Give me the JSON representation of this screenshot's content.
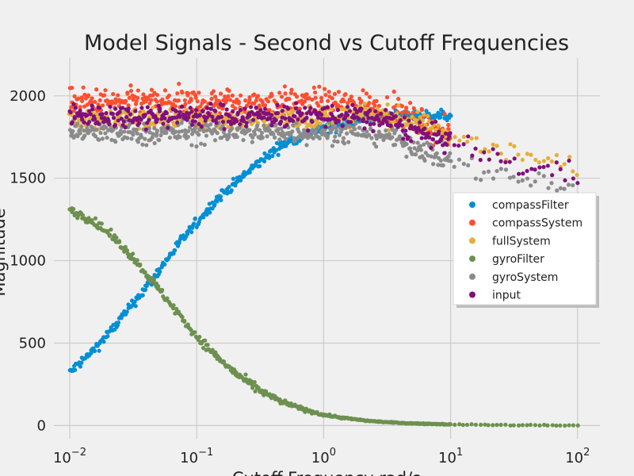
{
  "chart_data": {
    "type": "scatter",
    "title": "Model Signals - Second vs Cutoff Frequencies",
    "xlabel": "Cutoff Frequency rad/s",
    "ylabel": "Magnitude",
    "xscale": "log",
    "xlim": [
      0.0075,
      150
    ],
    "ylim": [
      -80,
      2230
    ],
    "x_ticks": [
      0.01,
      0.1,
      1,
      10,
      100
    ],
    "y_ticks": [
      0,
      500,
      1000,
      1500,
      2000
    ],
    "grid": true,
    "legend_position": "right",
    "series": [
      {
        "name": "compassFilter",
        "color": "#008fd5",
        "x": [
          0.01,
          0.0146,
          0.0215,
          0.0316,
          0.0464,
          0.0681,
          0.1,
          0.147,
          0.215,
          0.316,
          0.464,
          0.681,
          1.0,
          1.47,
          2.15,
          3.16,
          4.64,
          6.81,
          10
        ],
        "y": [
          320,
          440,
          580,
          740,
          900,
          1080,
          1230,
          1380,
          1490,
          1600,
          1700,
          1760,
          1800,
          1830,
          1860,
          1880,
          1880,
          1880,
          1880
        ]
      },
      {
        "name": "compassSystem",
        "color": "#fc4f30",
        "x": [
          0.01,
          0.0316,
          0.1,
          0.316,
          1.0,
          2.15,
          3.16,
          4.64,
          6.81,
          10
        ],
        "y": [
          1960,
          1960,
          1960,
          1960,
          1960,
          1950,
          1920,
          1870,
          1810,
          1760
        ]
      },
      {
        "name": "fullSystem",
        "color": "#e5ae38",
        "x": [
          0.01,
          0.0316,
          0.1,
          0.316,
          1.0,
          2.15,
          3.16,
          4.64,
          6.81,
          10,
          14.7,
          21.5,
          31.6,
          46.4,
          68.1,
          100
        ],
        "y": [
          1860,
          1860,
          1860,
          1860,
          1870,
          1890,
          1880,
          1850,
          1810,
          1760,
          1720,
          1680,
          1650,
          1620,
          1590,
          1560
        ]
      },
      {
        "name": "gyroFilter",
        "color": "#6d904f",
        "x": [
          0.01,
          0.0146,
          0.0215,
          0.0316,
          0.0464,
          0.0681,
          0.1,
          0.147,
          0.215,
          0.316,
          0.464,
          0.681,
          1.0,
          1.47,
          2.15,
          3.16,
          4.64,
          6.81,
          10,
          21.5,
          46.4,
          100
        ],
        "y": [
          1310,
          1250,
          1150,
          1020,
          860,
          700,
          540,
          410,
          300,
          210,
          145,
          100,
          65,
          45,
          30,
          20,
          14,
          10,
          7,
          3,
          2,
          1
        ]
      },
      {
        "name": "gyroSystem",
        "color": "#8b8b8b",
        "x": [
          0.01,
          0.0316,
          0.1,
          0.316,
          1.0,
          2.15,
          3.16,
          4.64,
          6.81,
          10,
          14.7,
          21.5,
          31.6,
          46.4,
          68.1,
          100
        ],
        "y": [
          1780,
          1770,
          1780,
          1780,
          1780,
          1780,
          1760,
          1710,
          1660,
          1610,
          1570,
          1530,
          1500,
          1470,
          1450,
          1430
        ]
      },
      {
        "name": "input",
        "color": "#810f7c",
        "x": [
          0.01,
          0.0316,
          0.1,
          0.316,
          1.0,
          2.15,
          3.16,
          4.64,
          6.81,
          10,
          14.7,
          21.5,
          31.6,
          46.4,
          68.1,
          100
        ],
        "y": [
          1880,
          1880,
          1880,
          1880,
          1880,
          1870,
          1850,
          1800,
          1760,
          1720,
          1680,
          1630,
          1590,
          1560,
          1540,
          1520
        ]
      }
    ]
  }
}
